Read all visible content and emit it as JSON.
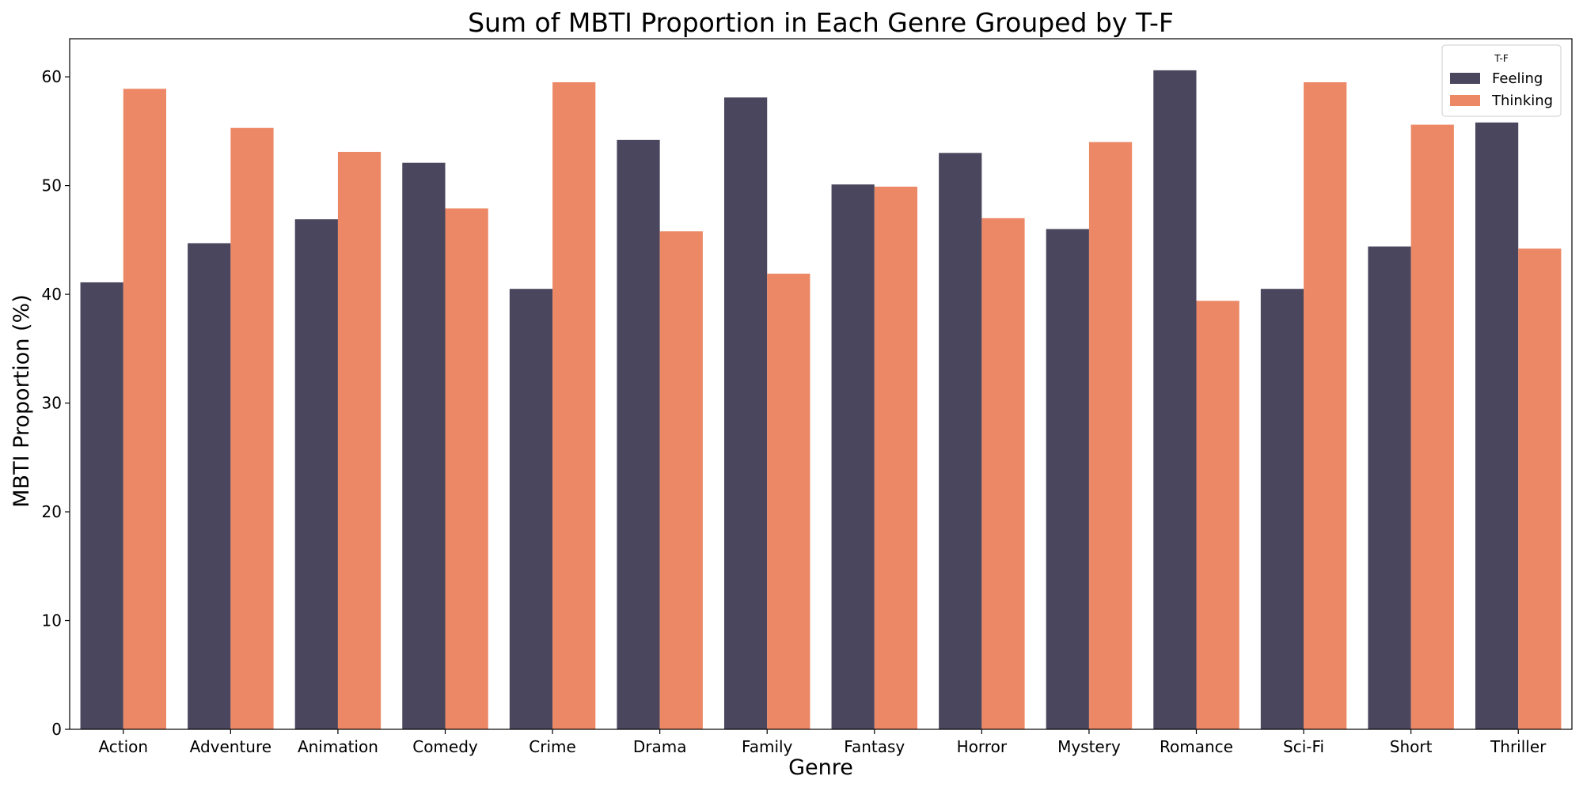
{
  "chart_data": {
    "type": "bar",
    "title": "Sum of MBTI Proportion in Each Genre Grouped by T-F",
    "xlabel": "Genre",
    "ylabel": "MBTI Proportion (%)",
    "ylim": [
      0,
      63.5
    ],
    "yticks": [
      0,
      10,
      20,
      30,
      40,
      50,
      60
    ],
    "grid": false,
    "legend": {
      "title": "T-F",
      "placement": "top-right"
    },
    "categories": [
      "Action",
      "Adventure",
      "Animation",
      "Comedy",
      "Crime",
      "Drama",
      "Family",
      "Fantasy",
      "Horror",
      "Mystery",
      "Romance",
      "Sci-Fi",
      "Short",
      "Thriller"
    ],
    "series": [
      {
        "name": "Feeling",
        "color": "#49465d",
        "values": [
          41.1,
          44.7,
          46.9,
          52.1,
          40.5,
          54.2,
          58.1,
          50.1,
          53.0,
          46.0,
          60.6,
          40.5,
          44.4,
          55.8
        ]
      },
      {
        "name": "Thinking",
        "color": "#ec8865",
        "values": [
          58.9,
          55.3,
          53.1,
          47.9,
          59.5,
          45.8,
          41.9,
          49.9,
          47.0,
          54.0,
          39.4,
          59.5,
          55.6,
          44.2
        ]
      }
    ]
  }
}
